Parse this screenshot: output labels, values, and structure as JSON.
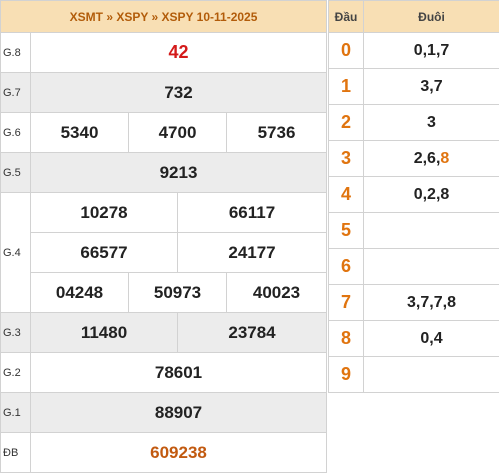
{
  "header": {
    "crumb1": "XSMT",
    "crumb2": "XSPY",
    "title": "XSPY 10-11-2025",
    "separator": "»"
  },
  "prizes": {
    "g8": {
      "label": "G.8",
      "values": [
        "42"
      ]
    },
    "g7": {
      "label": "G.7",
      "values": [
        "732"
      ]
    },
    "g6": {
      "label": "G.6",
      "values": [
        "5340",
        "4700",
        "5736"
      ]
    },
    "g5": {
      "label": "G.5",
      "values": [
        "9213"
      ]
    },
    "g4": {
      "label": "G.4",
      "values": [
        "10278",
        "66117",
        "66577",
        "24177",
        "04248",
        "50973",
        "40023"
      ]
    },
    "g3": {
      "label": "G.3",
      "values": [
        "11480",
        "23784"
      ]
    },
    "g2": {
      "label": "G.2",
      "values": [
        "78601"
      ]
    },
    "g1": {
      "label": "G.1",
      "values": [
        "88907"
      ]
    },
    "db": {
      "label": "ĐB",
      "values": [
        "609238"
      ]
    }
  },
  "loto": {
    "head_col": "Đầu",
    "tail_col": "Đuôi",
    "rows": [
      {
        "head": "0",
        "tail_plain": "0,1,7",
        "tail_highlight": ""
      },
      {
        "head": "1",
        "tail_plain": "3,7",
        "tail_highlight": ""
      },
      {
        "head": "2",
        "tail_plain": "3",
        "tail_highlight": ""
      },
      {
        "head": "3",
        "tail_plain": "2,6,",
        "tail_highlight": "8"
      },
      {
        "head": "4",
        "tail_plain": "0,2,8",
        "tail_highlight": ""
      },
      {
        "head": "5",
        "tail_plain": "",
        "tail_highlight": ""
      },
      {
        "head": "6",
        "tail_plain": "",
        "tail_highlight": ""
      },
      {
        "head": "7",
        "tail_plain": "3,7,7,8",
        "tail_highlight": ""
      },
      {
        "head": "8",
        "tail_plain": "0,4",
        "tail_highlight": ""
      },
      {
        "head": "9",
        "tail_plain": "",
        "tail_highlight": ""
      }
    ]
  },
  "colors": {
    "header_bg": "#f8dfb4",
    "header_text": "#b25c0a",
    "special_prize": "#d41a1a",
    "jackpot": "#c25a10",
    "head_digit": "#e0740f",
    "row_shade": "#ececec"
  }
}
